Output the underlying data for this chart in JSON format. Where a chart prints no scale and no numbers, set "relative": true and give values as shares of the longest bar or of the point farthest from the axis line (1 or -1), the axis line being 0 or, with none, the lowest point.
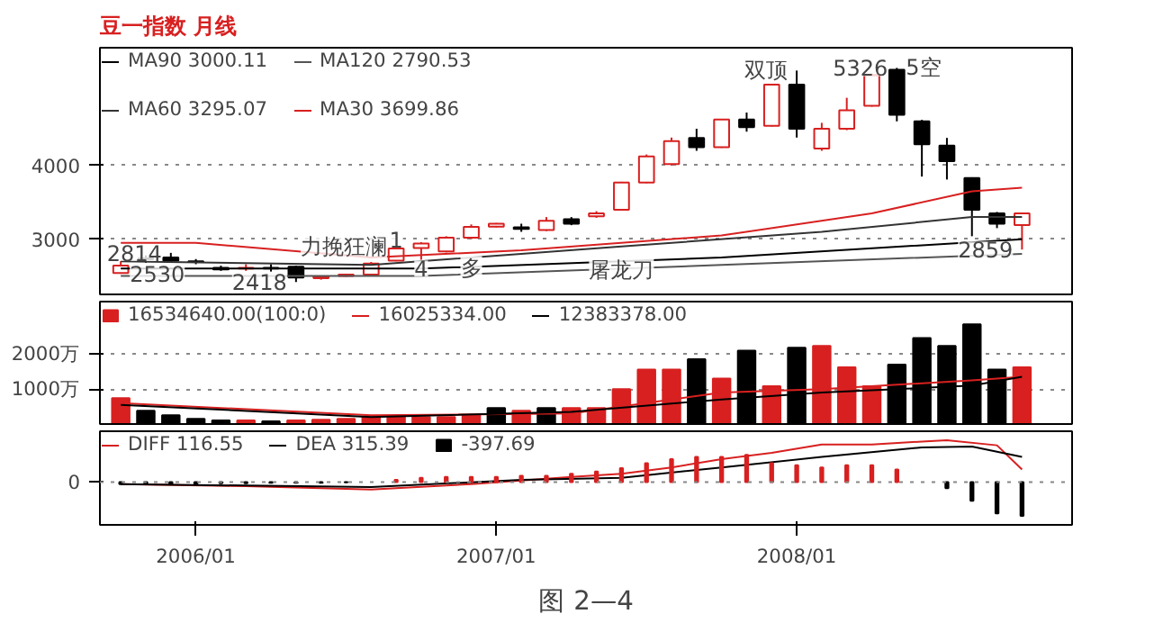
{
  "chart_data": [
    {
      "type": "candlestick",
      "title": "豆一指数 月线",
      "legend": "top",
      "grid": "y",
      "tick_labels": "y",
      "xlim": [
        "2005-09-06",
        "2008-12-01"
      ],
      "ylim": [
        2250,
        5600
      ],
      "yticks": [
        3000,
        4000
      ],
      "x": [
        "2005-10",
        "2005-11",
        "2005-12",
        "2006-01",
        "2006-02",
        "2006-03",
        "2006-04",
        "2006-05",
        "2006-06",
        "2006-07",
        "2006-08",
        "2006-09",
        "2006-10",
        "2006-11",
        "2006-12",
        "2007-01",
        "2007-02",
        "2007-03",
        "2007-04",
        "2007-05",
        "2007-06",
        "2007-07",
        "2007-08",
        "2007-09",
        "2007-10",
        "2007-11",
        "2007-12",
        "2008-01",
        "2008-02",
        "2008-03",
        "2008-04",
        "2008-05",
        "2008-06",
        "2008-07",
        "2008-08",
        "2008-09",
        "2008-10"
      ],
      "ohlc": [
        [
          2540,
          2700,
          2530,
          2640
        ],
        [
          2740,
          2780,
          2680,
          2730
        ],
        [
          2750,
          2814,
          2690,
          2710
        ],
        [
          2700,
          2730,
          2660,
          2690
        ],
        [
          2610,
          2640,
          2570,
          2590
        ],
        [
          2600,
          2660,
          2570,
          2610
        ],
        [
          2610,
          2660,
          2560,
          2600
        ],
        [
          2625,
          2640,
          2418,
          2480
        ],
        [
          2470,
          2500,
          2450,
          2490
        ],
        [
          2500,
          2530,
          2490,
          2520
        ],
        [
          2520,
          2690,
          2500,
          2670
        ],
        [
          2710,
          2900,
          2700,
          2875
        ],
        [
          2880,
          2960,
          2720,
          2940
        ],
        [
          2833,
          3040,
          2820,
          3020
        ],
        [
          3020,
          3200,
          3000,
          3167
        ],
        [
          3170,
          3220,
          3160,
          3210
        ],
        [
          3160,
          3210,
          3100,
          3140
        ],
        [
          3125,
          3300,
          3110,
          3250
        ],
        [
          3270,
          3300,
          3190,
          3210
        ],
        [
          3310,
          3380,
          3290,
          3350
        ],
        [
          3400,
          3780,
          3390,
          3770
        ],
        [
          3770,
          4150,
          3760,
          4125
        ],
        [
          4020,
          4380,
          4000,
          4333
        ],
        [
          4375,
          4500,
          4200,
          4250
        ],
        [
          4250,
          4630,
          4240,
          4625
        ],
        [
          4625,
          4720,
          4460,
          4520
        ],
        [
          4540,
          5110,
          4530,
          5100
        ],
        [
          5100,
          5290,
          4380,
          4500
        ],
        [
          4230,
          4580,
          4200,
          4500
        ],
        [
          4500,
          4920,
          4480,
          4750
        ],
        [
          4810,
          5250,
          4800,
          5230
        ],
        [
          5300,
          5326,
          4600,
          4690
        ],
        [
          4600,
          4620,
          3850,
          4290
        ],
        [
          4270,
          4375,
          3810,
          4060
        ],
        [
          3830,
          3840,
          3040,
          3400
        ],
        [
          3350,
          3370,
          3150,
          3210
        ],
        [
          3190,
          3360,
          2859,
          3350
        ]
      ],
      "colors": [
        "#d82020",
        "#000000",
        "#000000",
        "#000000",
        "#000000",
        "#d82020",
        "#000000",
        "#000000",
        "#d82020",
        "#d82020",
        "#d82020",
        "#d82020",
        "#d82020",
        "#d82020",
        "#d82020",
        "#d82020",
        "#000000",
        "#d82020",
        "#000000",
        "#d82020",
        "#d82020",
        "#d82020",
        "#d82020",
        "#000000",
        "#d82020",
        "#000000",
        "#d82020",
        "#000000",
        "#d82020",
        "#d82020",
        "#d82020",
        "#000000",
        "#000000",
        "#000000",
        "#000000",
        "#000000",
        "#d82020"
      ],
      "series": [
        {
          "type": "line",
          "name": "MA90 3000.11",
          "color": "#000000",
          "x": [
            "2005-10",
            "2006-10",
            "2007-10",
            "2008-10"
          ],
          "values": [
            2600,
            2600,
            2750,
            3000
          ]
        },
        {
          "type": "line",
          "name": "MA120 2790.53",
          "color": "#555555",
          "x": [
            "2005-10",
            "2006-10",
            "2007-10",
            "2008-10"
          ],
          "values": [
            2500,
            2500,
            2650,
            2800
          ]
        },
        {
          "type": "line",
          "name": "MA60 3295.07",
          "color": "#333333",
          "x": [
            "2005-10",
            "2006-08",
            "2007-06",
            "2008-02",
            "2008-08",
            "2008-10"
          ],
          "values": [
            2700,
            2650,
            2900,
            3100,
            3300,
            3300
          ]
        },
        {
          "type": "line",
          "name": "MA30 3699.86",
          "color": "#d82020",
          "x": [
            "2005-10",
            "2006-01",
            "2006-08",
            "2007-02",
            "2007-10",
            "2008-04",
            "2008-08",
            "2008-10"
          ],
          "values": [
            2950,
            2950,
            2750,
            2850,
            3050,
            3350,
            3650,
            3700
          ]
        }
      ],
      "annotations": [
        {
          "text": "2530",
          "x": "2005-10",
          "y": 2530
        },
        {
          "text": "2814",
          "x": "2005-12",
          "y": 2814
        },
        {
          "text": "2418",
          "x": "2006-05",
          "y": 2418
        },
        {
          "text": "力挽狂澜",
          "x": "2006-09",
          "y": 2900
        },
        {
          "text": "1",
          "x": "2006-09",
          "y": 3000
        },
        {
          "text": "4",
          "x": "2006-10",
          "y": 2600
        },
        {
          "text": "多",
          "x": "2006-12",
          "y": 2600
        },
        {
          "text": "屠龙刀",
          "x": "2007-06",
          "y": 2580
        },
        {
          "text": "双顶",
          "x": "2008-01",
          "y": 5290
        },
        {
          "text": "5326",
          "x": "2008-05",
          "y": 5326
        },
        {
          "text": "5空",
          "x": "2008-05",
          "y": 5326
        },
        {
          "text": "2859",
          "x": "2008-10",
          "y": 2859
        }
      ]
    },
    {
      "type": "bar",
      "legend": "top",
      "grid": "y",
      "tick_labels": "y",
      "xlim": [
        "2005-09-06",
        "2008-12-01"
      ],
      "ylim": [
        0,
        3500
      ],
      "yticks": [
        {
          "value": 1000,
          "label": "1000万"
        },
        {
          "value": 2000,
          "label": "2000万"
        }
      ],
      "x": [
        "2005-10",
        "2005-11",
        "2005-12",
        "2006-01",
        "2006-02",
        "2006-03",
        "2006-04",
        "2006-05",
        "2006-06",
        "2006-07",
        "2006-08",
        "2006-09",
        "2006-10",
        "2006-11",
        "2006-12",
        "2007-01",
        "2007-02",
        "2007-03",
        "2007-04",
        "2007-05",
        "2007-06",
        "2007-07",
        "2007-08",
        "2007-09",
        "2007-10",
        "2007-11",
        "2007-12",
        "2008-01",
        "2008-02",
        "2008-03",
        "2008-04",
        "2008-05",
        "2008-06",
        "2008-07",
        "2008-08",
        "2008-09",
        "2008-10"
      ],
      "series": [
        {
          "type": "bar",
          "name": "16534640.00(100:0)",
          "color": "#d82020",
          "values": [
            740,
            380,
            250,
            150,
            100,
            100,
            80,
            100,
            120,
            150,
            200,
            200,
            200,
            200,
            250,
            460,
            380,
            460,
            460,
            460,
            1000,
            1560,
            1560,
            1850,
            1300,
            2100,
            1080,
            2180,
            2230,
            1620,
            1080,
            1700,
            2460,
            2230,
            2850,
            1560,
            1620
          ],
          "colors": [
            "#d82020",
            "#000000",
            "#000000",
            "#000000",
            "#000000",
            "#d82020",
            "#000000",
            "#d82020",
            "#d82020",
            "#d82020",
            "#d82020",
            "#d82020",
            "#d82020",
            "#d82020",
            "#d82020",
            "#000000",
            "#d82020",
            "#000000",
            "#d82020",
            "#d82020",
            "#d82020",
            "#d82020",
            "#d82020",
            "#000000",
            "#d82020",
            "#000000",
            "#d82020",
            "#000000",
            "#d82020",
            "#d82020",
            "#d82020",
            "#000000",
            "#000000",
            "#000000",
            "#000000",
            "#000000",
            "#d82020"
          ]
        },
        {
          "type": "line",
          "name": "16025334.00",
          "color": "#d82020",
          "x": [
            "2005-10",
            "2006-08",
            "2007-04",
            "2007-10",
            "2008-02",
            "2008-08",
            "2008-10"
          ],
          "values": [
            600,
            250,
            300,
            900,
            1000,
            1250,
            1350
          ]
        },
        {
          "type": "line",
          "name": "12383378.00",
          "color": "#000000",
          "x": [
            "2005-10",
            "2006-08",
            "2007-04",
            "2007-10",
            "2008-02",
            "2008-08",
            "2008-10"
          ],
          "values": [
            550,
            200,
            350,
            700,
            900,
            1100,
            1350
          ]
        }
      ]
    },
    {
      "type": "line",
      "relative": true,
      "legend": "top",
      "xlim": [
        "2005-09-06",
        "2008-12-01"
      ],
      "xticks": [
        {
          "value": "2006-01",
          "label": "2006/01"
        },
        {
          "value": "2007-01",
          "label": "2007/01"
        },
        {
          "value": "2008-01",
          "label": "2008/01"
        }
      ],
      "ref_lines": [
        {
          "axis": "y",
          "value": 0,
          "label": "0",
          "line_style": "dotted",
          "color": "#888888"
        }
      ],
      "series": [
        {
          "type": "line",
          "name": "DIFF 116.55",
          "color": "#d82020",
          "x": [
            "2005-10",
            "2006-03",
            "2006-08",
            "2006-12",
            "2007-04",
            "2007-06",
            "2007-08",
            "2007-10",
            "2007-12",
            "2008-02",
            "2008-04",
            "2008-06",
            "2008-07",
            "2008-09",
            "2008-10"
          ],
          "values": [
            -0.05,
            -0.1,
            -0.18,
            -0.05,
            0.12,
            0.2,
            0.35,
            0.55,
            0.7,
            0.9,
            0.9,
            0.97,
            1.0,
            0.88,
            0.3
          ]
        },
        {
          "type": "line",
          "name": "DEA 315.39",
          "color": "#000000",
          "x": [
            "2005-10",
            "2006-08",
            "2007-02",
            "2007-06",
            "2007-10",
            "2008-02",
            "2008-06",
            "2008-08",
            "2008-10"
          ],
          "values": [
            -0.05,
            -0.12,
            0.05,
            0.1,
            0.35,
            0.6,
            0.83,
            0.85,
            0.6
          ]
        },
        {
          "type": "bar",
          "name": "-397.69",
          "color": "#d82020",
          "x": [
            "2005-10",
            "2005-11",
            "2005-12",
            "2006-01",
            "2006-02",
            "2006-03",
            "2006-04",
            "2006-05",
            "2006-06",
            "2006-07",
            "2006-08",
            "2006-09",
            "2006-10",
            "2006-11",
            "2006-12",
            "2007-01",
            "2007-02",
            "2007-03",
            "2007-04",
            "2007-05",
            "2007-06",
            "2007-07",
            "2007-08",
            "2007-09",
            "2007-10",
            "2007-11",
            "2007-12",
            "2008-01",
            "2008-02",
            "2008-03",
            "2008-04",
            "2008-05",
            "2008-06",
            "2008-07",
            "2008-08",
            "2008-09",
            "2008-10"
          ],
          "values": [
            -0.05,
            -0.05,
            -0.04,
            -0.04,
            -0.03,
            -0.03,
            -0.02,
            -0.02,
            -0.02,
            -0.01,
            null,
            0.05,
            0.1,
            0.12,
            0.12,
            0.12,
            0.15,
            0.15,
            0.2,
            0.25,
            0.33,
            0.45,
            0.55,
            0.6,
            0.6,
            0.65,
            0.45,
            0.4,
            0.35,
            0.4,
            0.4,
            0.3,
            null,
            -0.15,
            -0.45,
            -0.75,
            -0.81
          ],
          "colors": [
            "#000000",
            "#000000",
            "#000000",
            "#000000",
            "#000000",
            "#000000",
            "#000000",
            "#000000",
            "#000000",
            "#000000",
            "#d82020",
            "#d82020",
            "#d82020",
            "#d82020",
            "#d82020",
            "#d82020",
            "#d82020",
            "#d82020",
            "#d82020",
            "#d82020",
            "#d82020",
            "#d82020",
            "#d82020",
            "#d82020",
            "#d82020",
            "#d82020",
            "#d82020",
            "#d82020",
            "#d82020",
            "#d82020",
            "#d82020",
            "#d82020",
            "#d82020",
            "#000000",
            "#000000",
            "#000000",
            "#000000"
          ]
        }
      ],
      "annotations": [
        "图 2—4"
      ]
    }
  ]
}
